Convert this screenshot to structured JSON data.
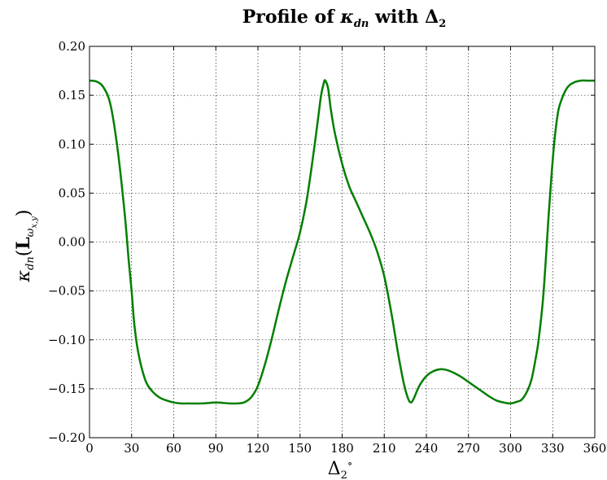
{
  "chart_data": {
    "type": "line",
    "title": {
      "prefix": "Profile of ",
      "kappa": "κ",
      "kappa_sub": "dn",
      "mid": " with ",
      "delta": "Δ",
      "delta_sub": "2"
    },
    "xlabel": {
      "delta": "Δ",
      "sub": "2",
      "sup": "∘"
    },
    "ylabel": {
      "kappa": "κ",
      "kappa_sub": "dn",
      "open": "(",
      "L": "L",
      "L_sub": "ω",
      "L_subsub": "x,y",
      "close": ")"
    },
    "xlim": [
      0,
      360
    ],
    "ylim": [
      -0.2,
      0.2
    ],
    "grid": true,
    "legend": "none",
    "line_color": "#007f00",
    "xticks": [
      0,
      30,
      60,
      90,
      120,
      150,
      180,
      210,
      240,
      270,
      300,
      330,
      360
    ],
    "xtick_labels": [
      "0",
      "30",
      "60",
      "90",
      "120",
      "150",
      "180",
      "210",
      "240",
      "270",
      "300",
      "330",
      "360"
    ],
    "yticks": [
      -0.2,
      -0.15,
      -0.1,
      -0.05,
      0.0,
      0.05,
      0.1,
      0.15,
      0.2
    ],
    "ytick_labels": [
      "−0.20",
      "−0.15",
      "−0.10",
      "−0.05",
      "0.00",
      "0.05",
      "0.10",
      "0.15",
      "0.20"
    ],
    "series": [
      {
        "x": [
          0,
          5,
          10,
          15,
          20,
          25,
          28,
          30,
          32,
          35,
          40,
          45,
          50,
          55,
          60,
          65,
          70,
          80,
          90,
          100,
          105,
          110,
          115,
          120,
          125,
          130,
          135,
          140,
          145,
          150,
          155,
          160,
          163,
          165,
          167,
          168,
          170,
          172,
          175,
          180,
          185,
          190,
          195,
          200,
          205,
          210,
          215,
          220,
          224,
          227,
          229,
          231,
          235,
          240,
          245,
          250,
          255,
          260,
          265,
          270,
          275,
          280,
          285,
          290,
          295,
          300,
          305,
          308,
          312,
          315,
          318,
          320,
          323,
          325,
          327,
          329,
          331,
          333,
          335,
          340,
          345,
          350,
          355,
          360
        ],
        "y": [
          0.165,
          0.164,
          0.158,
          0.14,
          0.095,
          0.03,
          -0.02,
          -0.05,
          -0.085,
          -0.115,
          -0.142,
          -0.153,
          -0.159,
          -0.162,
          -0.164,
          -0.165,
          -0.165,
          -0.165,
          -0.164,
          -0.165,
          -0.165,
          -0.164,
          -0.159,
          -0.147,
          -0.125,
          -0.098,
          -0.068,
          -0.04,
          -0.015,
          0.01,
          0.045,
          0.095,
          0.128,
          0.15,
          0.163,
          0.165,
          0.157,
          0.135,
          0.11,
          0.08,
          0.057,
          0.041,
          0.025,
          0.009,
          -0.01,
          -0.035,
          -0.072,
          -0.115,
          -0.145,
          -0.16,
          -0.164,
          -0.16,
          -0.147,
          -0.137,
          -0.132,
          -0.13,
          -0.131,
          -0.134,
          -0.138,
          -0.143,
          -0.148,
          -0.153,
          -0.158,
          -0.162,
          -0.164,
          -0.165,
          -0.163,
          -0.161,
          -0.152,
          -0.14,
          -0.118,
          -0.1,
          -0.06,
          -0.02,
          0.025,
          0.065,
          0.1,
          0.125,
          0.14,
          0.157,
          0.163,
          0.165,
          0.165,
          0.165
        ]
      }
    ]
  }
}
